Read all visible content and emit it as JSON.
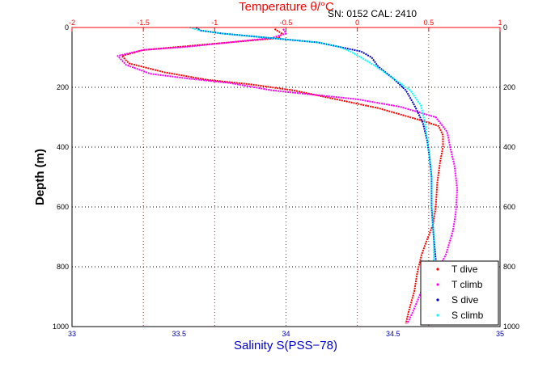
{
  "header": {
    "serial_text": "SN: 0152  CAL: 2410"
  },
  "chart_data": {
    "type": "line",
    "xlabel": "Salinity S(PSS−78)",
    "ylabel": "Depth (m)",
    "x2label": "Temperature θ/°C",
    "xlim": [
      33,
      35
    ],
    "x2lim": [
      -2,
      1
    ],
    "ylim": [
      0,
      1000
    ],
    "y_reversed": true,
    "x_ticks": [
      "33",
      "33.5",
      "34",
      "34.5",
      "35"
    ],
    "x2_ticks": [
      "-2",
      "-1.5",
      "-1",
      "-0.5",
      "0",
      "0.5",
      "1"
    ],
    "y_ticks": [
      "0",
      "200",
      "400",
      "600",
      "800",
      "1000"
    ],
    "grid": true,
    "legend_position": "bottom-right",
    "series": [
      {
        "name": "T dive",
        "axis": "temperature",
        "color": "#ff0000",
        "x": [
          -0.58,
          -0.53,
          -0.55,
          -0.9,
          -1.25,
          -1.5,
          -1.65,
          -1.6,
          -1.35,
          -1.05,
          -0.75,
          -0.45,
          -0.2,
          0.15,
          0.48,
          0.57,
          0.6,
          0.6,
          0.58,
          0.56,
          0.55,
          0.53,
          0.48,
          0.45,
          0.42,
          0.4,
          0.36,
          0.34
        ],
        "y": [
          5,
          20,
          35,
          50,
          65,
          75,
          95,
          120,
          150,
          175,
          190,
          210,
          235,
          270,
          315,
          330,
          360,
          400,
          450,
          520,
          600,
          660,
          720,
          760,
          820,
          880,
          950,
          990
        ]
      },
      {
        "name": "T climb",
        "axis": "temperature",
        "color": "#ff00ff",
        "x": [
          -0.52,
          -0.5,
          -0.6,
          -0.9,
          -1.2,
          -1.5,
          -1.68,
          -1.62,
          -1.45,
          -1.2,
          -0.9,
          -0.6,
          -0.3,
          0.0,
          0.3,
          0.55,
          0.63,
          0.65,
          0.68,
          0.7,
          0.69,
          0.67,
          0.62,
          0.55,
          0.45,
          0.39,
          0.35
        ],
        "y": [
          5,
          20,
          35,
          50,
          65,
          75,
          95,
          125,
          155,
          170,
          185,
          210,
          225,
          240,
          265,
          300,
          350,
          400,
          460,
          540,
          620,
          680,
          760,
          820,
          880,
          950,
          990
        ]
      },
      {
        "name": "S dive",
        "axis": "salinity",
        "color": "#0000cc",
        "x": [
          33.58,
          33.6,
          33.7,
          33.85,
          34.0,
          34.15,
          34.25,
          34.35,
          34.4,
          34.43,
          34.5,
          34.56,
          34.6,
          34.64,
          34.66,
          34.67,
          34.68,
          34.68,
          34.69,
          34.7,
          34.7
        ],
        "y": [
          0,
          10,
          20,
          30,
          40,
          50,
          65,
          80,
          100,
          130,
          170,
          210,
          260,
          320,
          380,
          430,
          500,
          600,
          700,
          780,
          800
        ]
      },
      {
        "name": "S climb",
        "axis": "salinity",
        "color": "#00ffff",
        "x": [
          33.55,
          33.6,
          33.7,
          33.85,
          34.0,
          34.15,
          34.25,
          34.3,
          34.35,
          34.42,
          34.5,
          34.58,
          34.63,
          34.65,
          34.66,
          34.67,
          34.68,
          34.68,
          34.69,
          34.69,
          34.7
        ],
        "y": [
          0,
          10,
          20,
          30,
          40,
          50,
          65,
          80,
          100,
          130,
          170,
          210,
          260,
          320,
          380,
          430,
          500,
          600,
          700,
          780,
          800
        ]
      }
    ]
  }
}
